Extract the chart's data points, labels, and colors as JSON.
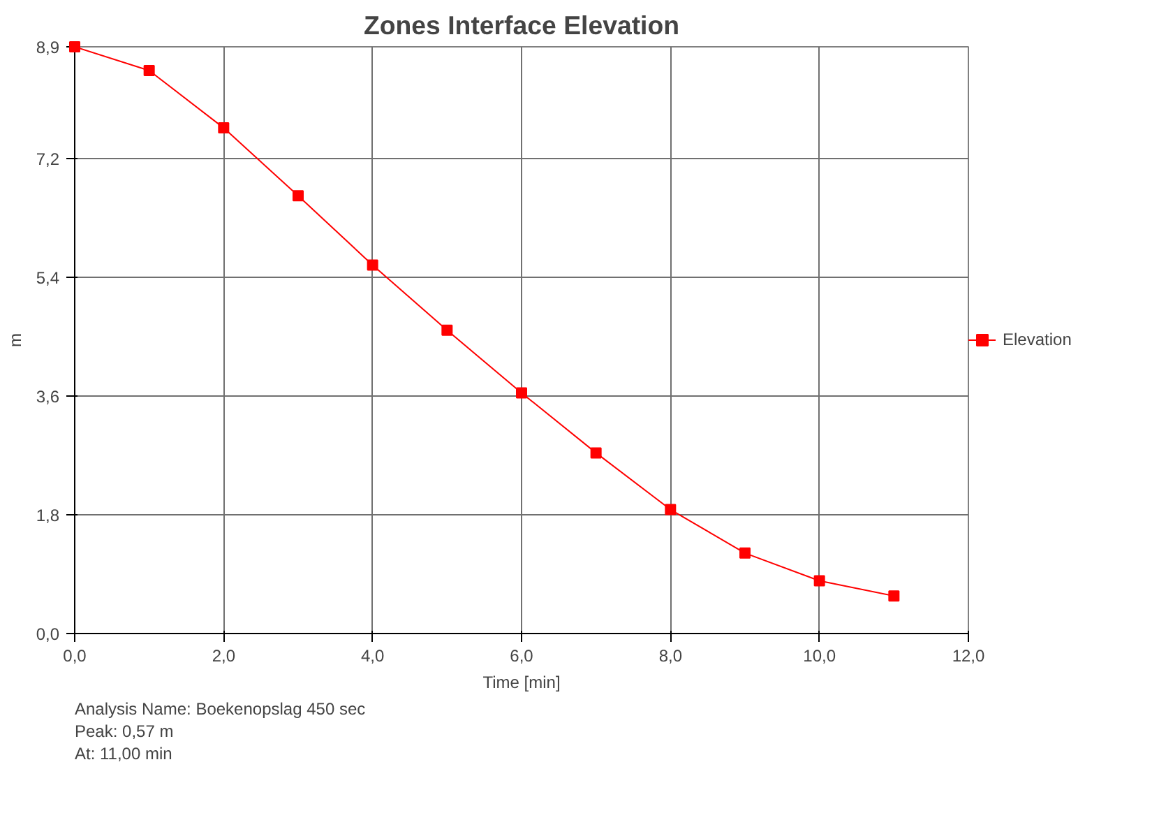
{
  "chart_data": {
    "type": "line",
    "title": "Zones Interface Elevation",
    "xlabel": "Time [min]",
    "ylabel": "m",
    "x": [
      0,
      1,
      2,
      3,
      4,
      5,
      6,
      7,
      8,
      9,
      10,
      11
    ],
    "series": [
      {
        "name": "Elevation",
        "color": "#ff0000",
        "values": [
          8.9,
          8.54,
          7.67,
          6.64,
          5.59,
          4.6,
          3.65,
          2.74,
          1.88,
          1.22,
          0.8,
          0.57
        ]
      }
    ],
    "xlim": [
      0,
      12
    ],
    "ylim": [
      0,
      8.9
    ],
    "xticks": [
      {
        "value": 0,
        "label": "0,0"
      },
      {
        "value": 2,
        "label": "2,0"
      },
      {
        "value": 4,
        "label": "4,0"
      },
      {
        "value": 6,
        "label": "6,0"
      },
      {
        "value": 8,
        "label": "8,0"
      },
      {
        "value": 10,
        "label": "10,0"
      },
      {
        "value": 12,
        "label": "12,0"
      }
    ],
    "yticks": [
      {
        "value": 0,
        "label": "0,0"
      },
      {
        "value": 1.8,
        "label": "1,8"
      },
      {
        "value": 3.6,
        "label": "3,6"
      },
      {
        "value": 5.4,
        "label": "5,4"
      },
      {
        "value": 7.2,
        "label": "7,2"
      },
      {
        "value": 8.9,
        "label": "8,9"
      }
    ],
    "grid": true,
    "legend": "right",
    "marker": "square",
    "line_style": "solid",
    "annotations": [
      "Analysis Name: Boekenopslag 450 sec",
      "Peak: 0,57 m",
      "At: 11,00 min"
    ]
  }
}
